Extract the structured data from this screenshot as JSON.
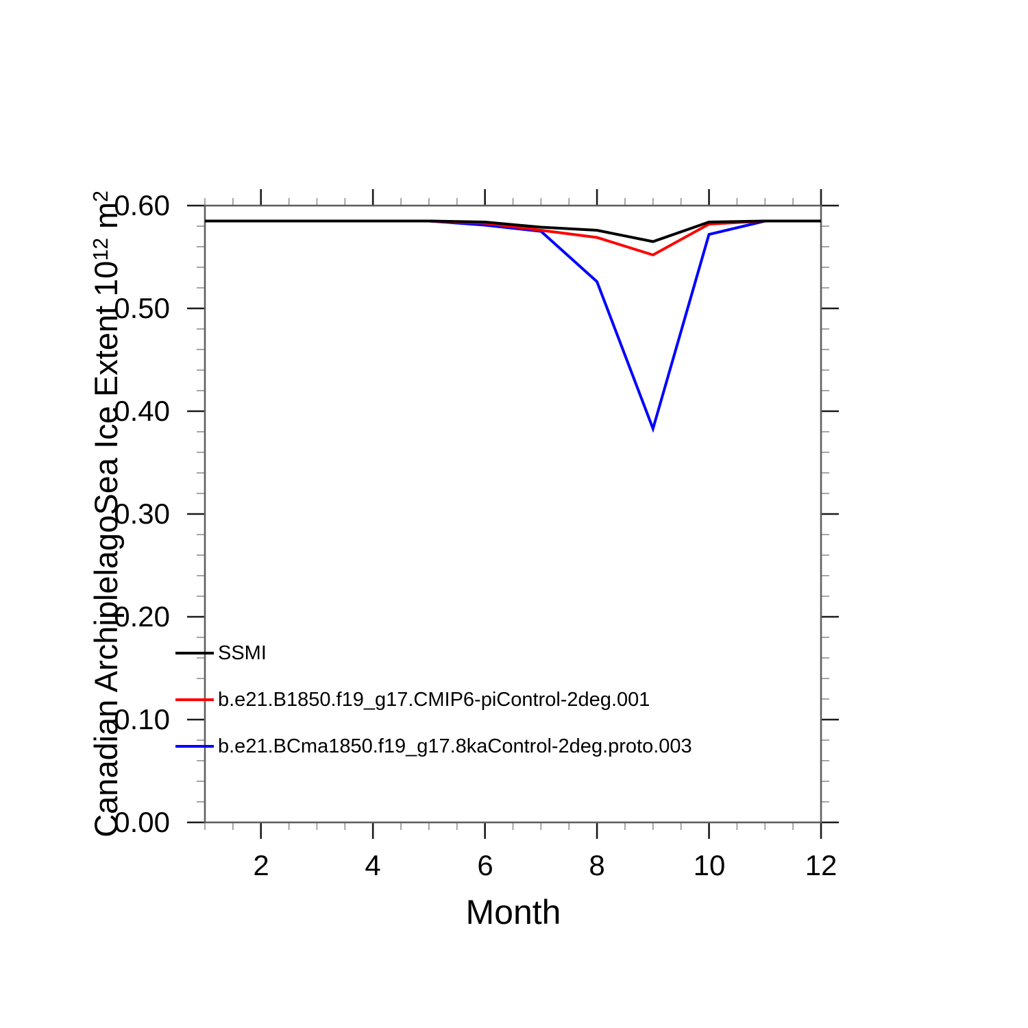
{
  "chart_data": {
    "type": "line",
    "title": "",
    "xlabel": "Month",
    "ylabel": "Canadian ArchiplelagoSea Ice Extent 10^12 m^2",
    "xlim": [
      1,
      12
    ],
    "ylim": [
      0.0,
      0.6
    ],
    "grid": false,
    "legend_position": "inside lower-left",
    "x": [
      1,
      2,
      3,
      4,
      5,
      6,
      7,
      8,
      9,
      10,
      11,
      12
    ],
    "x_tick_values": [
      2,
      4,
      6,
      8,
      10,
      12
    ],
    "x_tick_labels": [
      "2",
      "4",
      "6",
      "8",
      "10",
      "12"
    ],
    "x_minor_step": 0.5,
    "y_tick_values": [
      0.0,
      0.1,
      0.2,
      0.3,
      0.4,
      0.5,
      0.6
    ],
    "y_tick_labels": [
      "0.00",
      "0.10",
      "0.20",
      "0.30",
      "0.40",
      "0.50",
      "0.60"
    ],
    "y_minor_step": 0.02,
    "series": [
      {
        "name": "SSMI",
        "color": "#000000",
        "values": [
          0.585,
          0.585,
          0.585,
          0.585,
          0.585,
          0.584,
          0.579,
          0.576,
          0.565,
          0.584,
          0.585,
          0.585
        ]
      },
      {
        "name": "b.e21.B1850.f19_g17.CMIP6-piControl-2deg.001",
        "color": "#ff0000",
        "values": [
          0.585,
          0.585,
          0.585,
          0.585,
          0.585,
          0.583,
          0.576,
          0.569,
          0.552,
          0.582,
          0.585,
          0.585
        ]
      },
      {
        "name": "b.e21.BCma1850.f19_g17.8kaControl-2deg.proto.003",
        "color": "#0000ff",
        "values": [
          0.585,
          0.585,
          0.585,
          0.585,
          0.585,
          0.581,
          0.575,
          0.526,
          0.383,
          0.572,
          0.585,
          0.585
        ]
      }
    ]
  },
  "ylabel_rich": {
    "text1": "Canadian ArchiplelagoSea Ice Extent 10",
    "sup1": "12",
    "text2": " m",
    "sup2": "2"
  },
  "style": {
    "frame_color": "#5f5f5f",
    "major_tick_color": "#1a1a1a",
    "minor_tick_color": "#9b9b9b",
    "background": "#ffffff"
  }
}
